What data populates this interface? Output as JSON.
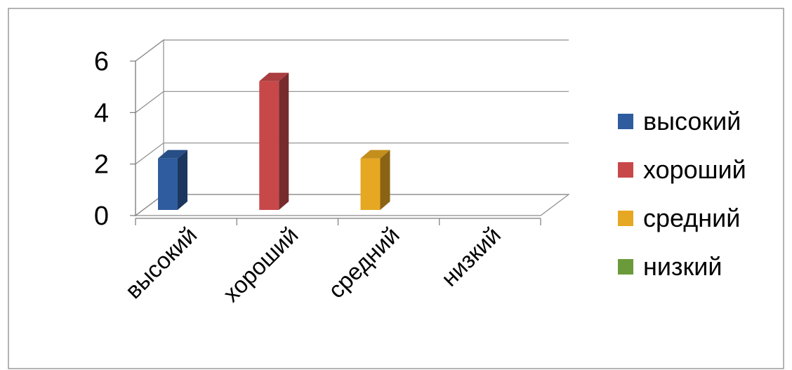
{
  "chart_data": {
    "type": "bar",
    "three_d": true,
    "categories": [
      "высокий",
      "хороший",
      "средний",
      "низкий"
    ],
    "values": [
      2,
      5,
      2,
      0
    ],
    "colors": [
      "#2E5C9E",
      "#C8484A",
      "#E6A722",
      "#6A9A3A"
    ],
    "ylim": [
      0,
      6
    ],
    "yticks": [
      0,
      2,
      4,
      6
    ],
    "grid": true,
    "legend_position": "right",
    "legend": [
      {
        "label": "высокий",
        "color": "#2E5C9E"
      },
      {
        "label": "хороший",
        "color": "#C8484A"
      },
      {
        "label": "средний",
        "color": "#E6A722"
      },
      {
        "label": "низкий",
        "color": "#6A9A3A"
      }
    ]
  }
}
